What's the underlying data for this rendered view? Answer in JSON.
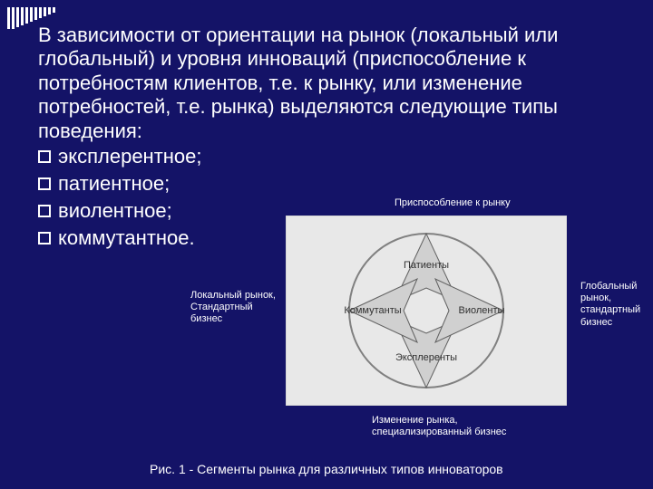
{
  "deco": {
    "bars": [
      24,
      24,
      22,
      20,
      18,
      16,
      14,
      12,
      10,
      8,
      6
    ]
  },
  "intro": "В зависимости от ориентации на рынок (локальный или глобальный) и уровня инноваций (приспособление к потребностям клиентов, т.е. к рынку, или изменение потребностей, т.е. рынка) выделяются следующие типы поведения:",
  "items": [
    "эксплерентное;",
    "патиентное;",
    "виолентное;",
    "коммутантное."
  ],
  "labels": {
    "top": "Приспособление к рынку",
    "left": "Локальный рынок,\nСтандартный бизнес",
    "right": "Глобальный рынок,\nстандартный\nбизнес",
    "bottom": "Изменение рынка,\nспециализированный бизнес"
  },
  "quadrants": {
    "top": "Патиенты",
    "right": "Виоленты",
    "bottom": "Эксплеренты",
    "left": "Коммутанты"
  },
  "caption": "Рис. 1 - Сегменты рынка для различных типов инноваторов",
  "colors": {
    "bg": "#141367",
    "text": "#ffffff",
    "diag_bg": "#e8e8e8",
    "diag_border": "#c8c8c8",
    "arrow_fill": "#d0d0d0",
    "arrow_stroke": "#606060",
    "circle_stroke": "#808080"
  }
}
